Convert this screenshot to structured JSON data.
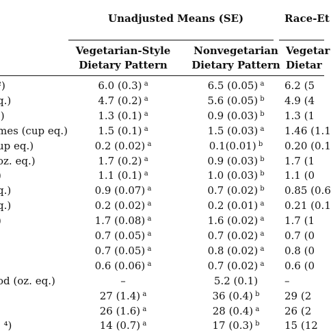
{
  "header": {
    "group1": "Unadjusted Means (SE)",
    "group2": "Race-Et",
    "sub1_line1": "Vegetarian-Style",
    "sub1_line2": "Dietary Pattern",
    "sub2_line1": "Nonvegetarian",
    "sub2_line2": "Dietary Pattern",
    "sub3_line1": "Vegetar",
    "sub3_line2": "Dietar"
  },
  "rows": [
    {
      "label": "²)",
      "v1": "6.0 (0.3)",
      "s1": "a",
      "v2": "6.5 (0.05)",
      "s2": "a",
      "v3": "6.2 (5"
    },
    {
      "label": "q.)",
      "v1": "4.7 (0.2)",
      "s1": "a",
      "v2": "5.6 (0.05)",
      "s2": "b",
      "v3": "4.9 (4"
    },
    {
      "label": ".)",
      "v1": "1.3 (0.1)",
      "s1": "a",
      "v2": "0.9 (0.03)",
      "s2": "b",
      "v3": "1.3 (1"
    },
    {
      "label": "mes (cup eq.)",
      "v1": "1.5 (0.1)",
      "s1": "a",
      "v2": "1.5 (0.03)",
      "s2": "a",
      "v3": "1.46 (1.1"
    },
    {
      "label": "up eq.)",
      "v1": "0.2 (0.02)",
      "s1": "a",
      "v2": "0.1(0.01)",
      "s2": "b",
      "v3": "0.20 (0.1"
    },
    {
      "label": "oz. eq.)",
      "v1": "1.7 (0.2)",
      "s1": "a",
      "v2": "0.9 (0.03)",
      "s2": "b",
      "v3": "1.7 (1"
    },
    {
      "label": ")",
      "v1": "1.1 (0.1)",
      "s1": "a",
      "v2": "1.0 (0.03)",
      "s2": "b",
      "v3": "1.1 (0"
    },
    {
      "label": "q.)",
      "v1": "0.9 (0.07)",
      "s1": "a",
      "v2": "0.7 (0.02)",
      "s2": "b",
      "v3": "0.85 (0.6"
    },
    {
      "label": "q.)",
      "v1": "0.2 (0.02)",
      "s1": "a",
      "v2": "0.2 (0.01)",
      "s2": "a",
      "v3": "0.21 (0.1"
    },
    {
      "label": ")",
      "v1": "1.7 (0.08)",
      "s1": "a",
      "v2": "1.6 (0.02)",
      "s2": "a",
      "v3": "1.7 (1"
    },
    {
      "label": "",
      "v1": "0.7 (0.05)",
      "s1": "a",
      "v2": "0.7 (0.02)",
      "s2": "a",
      "v3": "0.7 (0"
    },
    {
      "label": "",
      "v1": "0.7 (0.05)",
      "s1": "a",
      "v2": "0.8 (0.02)",
      "s2": "a",
      "v3": "0.8 (0"
    },
    {
      "label": "",
      "v1": "0.6 (0.06)",
      "s1": "a",
      "v2": "0.7 (0.02)",
      "s2": "a",
      "v3": "0.6 (0"
    },
    {
      "label": "od (oz. eq.)",
      "v1": "–",
      "s1": "",
      "v2": "5.2 (0.1)",
      "s2": "",
      "v3": "–"
    },
    {
      "label": "",
      "v1": "27 (1.4)",
      "s1": "a",
      "v2": "36 (0.4)",
      "s2": "b",
      "v3": "29 (2"
    },
    {
      "label": "",
      "v1": "26 (1.6)",
      "s1": "a",
      "v2": "28 (0.4)",
      "s2": "a",
      "v3": "26 (2"
    },
    {
      "label": ", ⁴)",
      "v1": "14 (0.7)",
      "s1": "a",
      "v2": "17 (0.3)",
      "s2": "b",
      "v3": "15 (12"
    }
  ]
}
